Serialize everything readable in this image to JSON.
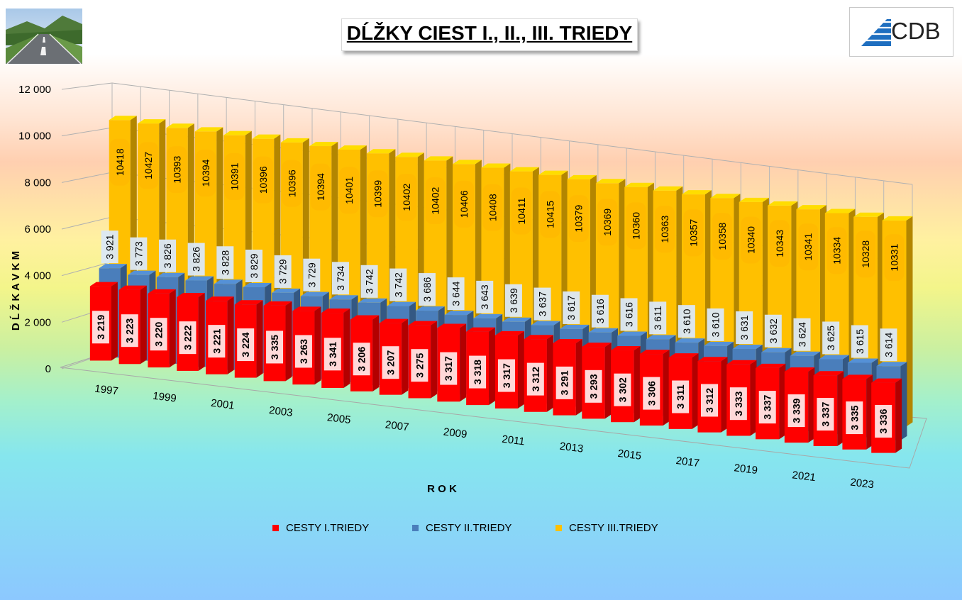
{
  "title": "DĹŽKY CIEST I., II., III. TRIEDY",
  "logo_text": "CDB",
  "chart_data": {
    "type": "bar",
    "subtype": "3d-clustered-column",
    "title": "DĹŽKY CIEST I., II., III. TRIEDY",
    "xlabel": "R O K",
    "ylabel": "D Ĺ Ž K A   V   K M",
    "ylim": [
      0,
      12000
    ],
    "yticks": [
      0,
      2000,
      4000,
      6000,
      8000,
      10000,
      12000
    ],
    "ytick_labels": [
      "0",
      "2 000",
      "4 000",
      "6 000",
      "8 000",
      "10 000",
      "12 000"
    ],
    "categories": [
      "1997",
      "1998",
      "1999",
      "2000",
      "2001",
      "2002",
      "2003",
      "2004",
      "2005",
      "2006",
      "2007",
      "2008",
      "2009",
      "2010",
      "2011",
      "2012",
      "2013",
      "2014",
      "2015",
      "2016",
      "2017",
      "2018",
      "2019",
      "2020",
      "2021",
      "2022",
      "2023",
      "2024"
    ],
    "xtick_labels": [
      "1997",
      "1999",
      "2001",
      "2003",
      "2005",
      "2007",
      "2009",
      "2011",
      "2013",
      "2015",
      "2017",
      "2019",
      "2021",
      "2023"
    ],
    "grid": true,
    "legend_position": "bottom",
    "series": [
      {
        "name": "CESTY I.TRIEDY",
        "color": "#ff0000",
        "values": [
          3219,
          3223,
          3220,
          3222,
          3221,
          3224,
          3335,
          3263,
          3341,
          3206,
          3207,
          3275,
          3317,
          3318,
          3317,
          3312,
          3291,
          3293,
          3302,
          3306,
          3311,
          3312,
          3333,
          3337,
          3339,
          3337,
          3335,
          3336
        ],
        "labels": [
          "3 219",
          "3 223",
          "3 220",
          "3 222",
          "3 221",
          "3 224",
          "3 335",
          "3 263",
          "3 341",
          "3 206",
          "3 207",
          "3 275",
          "3 317",
          "3 318",
          "3 317",
          "3 312",
          "3 291",
          "3 293",
          "3 302",
          "3 306",
          "3 311",
          "3 312",
          "3 333",
          "3 337",
          "3 339",
          "3 337",
          "3 335",
          "3 336"
        ]
      },
      {
        "name": "CESTY II.TRIEDY",
        "color": "#4a7ebb",
        "values": [
          3921,
          3773,
          3826,
          3826,
          3828,
          3829,
          3729,
          3729,
          3734,
          3742,
          3742,
          3686,
          3644,
          3643,
          3639,
          3637,
          3617,
          3616,
          3616,
          3611,
          3610,
          3610,
          3631,
          3632,
          3624,
          3625,
          3615,
          3614
        ],
        "labels": [
          "3 921",
          "3 773",
          "3 826",
          "3 826",
          "3 828",
          "3 829",
          "3 729",
          "3 729",
          "3 734",
          "3 742",
          "3 742",
          "3 686",
          "3 644",
          "3 643",
          "3 639",
          "3 637",
          "3 617",
          "3 616",
          "3 616",
          "3 611",
          "3 610",
          "3 610",
          "3 631",
          "3 632",
          "3 624",
          "3 625",
          "3 615",
          "3 614"
        ]
      },
      {
        "name": "CESTY III.TRIEDY",
        "color": "#ffc000",
        "values": [
          10418,
          10427,
          10393,
          10394,
          10391,
          10396,
          10396,
          10394,
          10401,
          10399,
          10402,
          10402,
          10406,
          10408,
          10411,
          10415,
          10379,
          10369,
          10360,
          10363,
          10357,
          10358,
          10340,
          10343,
          10341,
          10334,
          10328,
          10331
        ],
        "labels": [
          "10418",
          "10427",
          "10393",
          "10394",
          "10391",
          "10396",
          "10396",
          "10394",
          "10401",
          "10399",
          "10402",
          "10402",
          "10406",
          "10408",
          "10411",
          "10415",
          "10379",
          "10369",
          "10360",
          "10363",
          "10357",
          "10358",
          "10340",
          "10343",
          "10341",
          "10334",
          "10328",
          "10331"
        ]
      }
    ]
  }
}
